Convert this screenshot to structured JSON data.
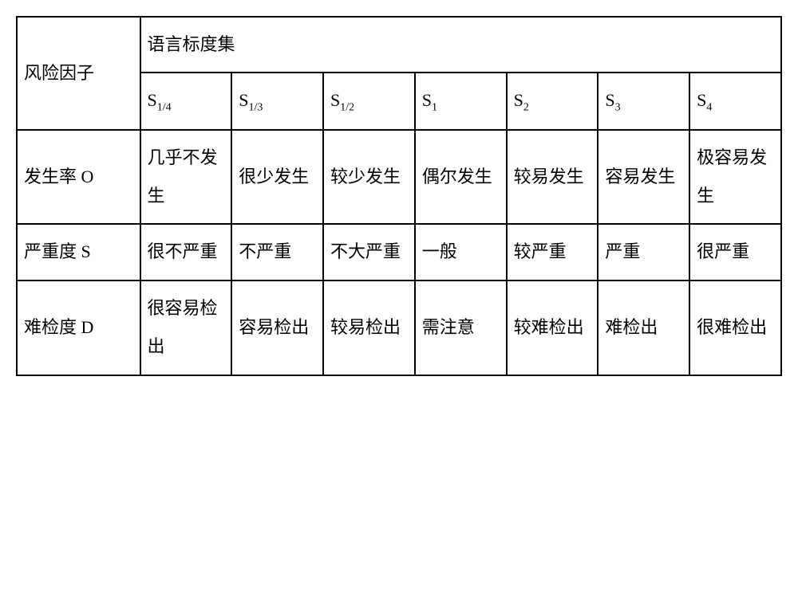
{
  "table": {
    "type": "table",
    "border_color": "#000000",
    "background_color": "#ffffff",
    "text_color": "#000000",
    "font_family": "SimSun",
    "font_size_main": 22,
    "font_size_sub": 14,
    "line_height": 2.2,
    "header": {
      "risk_factor_label": "风险因子",
      "scale_set_label": "语言标度集",
      "scale_prefix": "S",
      "scale_subs": [
        "1/4",
        "1/3",
        "1/2",
        "1",
        "2",
        "3",
        "4"
      ]
    },
    "rows": [
      {
        "factor": "发生率 O",
        "cells": [
          "几乎不发生",
          "很少发生",
          "较少发生",
          "偶尔发生",
          "较易发生",
          "容易发生",
          "极容易发生"
        ]
      },
      {
        "factor": "严重度 S",
        "cells": [
          "很不严重",
          "不严重",
          "不大严重",
          "一般",
          "较严重",
          "严重",
          "很严重"
        ]
      },
      {
        "factor": "难检度 D",
        "cells": [
          "很容易检出",
          "容易检出",
          "较易检出",
          "需注意",
          "较难检出",
          "难检出",
          "很难检出"
        ]
      }
    ],
    "column_widths": {
      "factor": 140,
      "scale": 104
    }
  }
}
